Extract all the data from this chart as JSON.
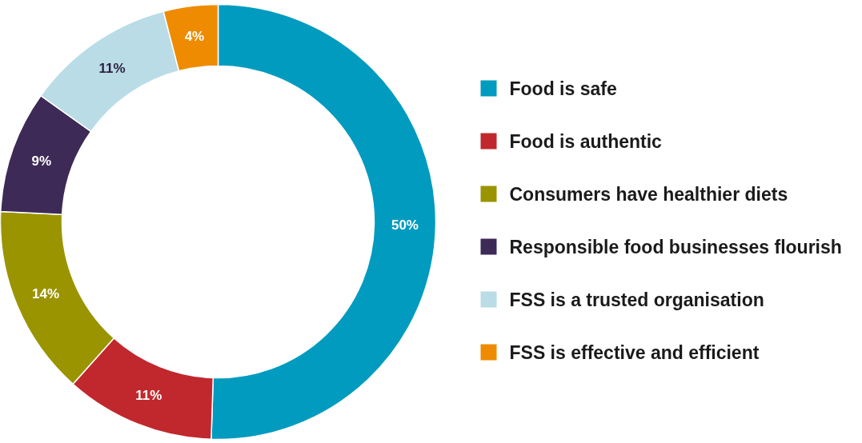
{
  "chart_data": {
    "type": "donut",
    "categories": [
      "Food is safe",
      "Food is authentic",
      "Consumers have healthier diets",
      "Responsible food businesses flourish",
      "FSS is a trusted organisation",
      "FSS is effective and efficient"
    ],
    "values": [
      50,
      11,
      14,
      9,
      11,
      4
    ],
    "colors": [
      "#009bbf",
      "#c0282d",
      "#9a9400",
      "#3d2a56",
      "#b9dce6",
      "#ee8b00"
    ],
    "value_labels": [
      "50%",
      "11%",
      "14%",
      "9%",
      "11%",
      "4%"
    ],
    "legend": "right"
  }
}
